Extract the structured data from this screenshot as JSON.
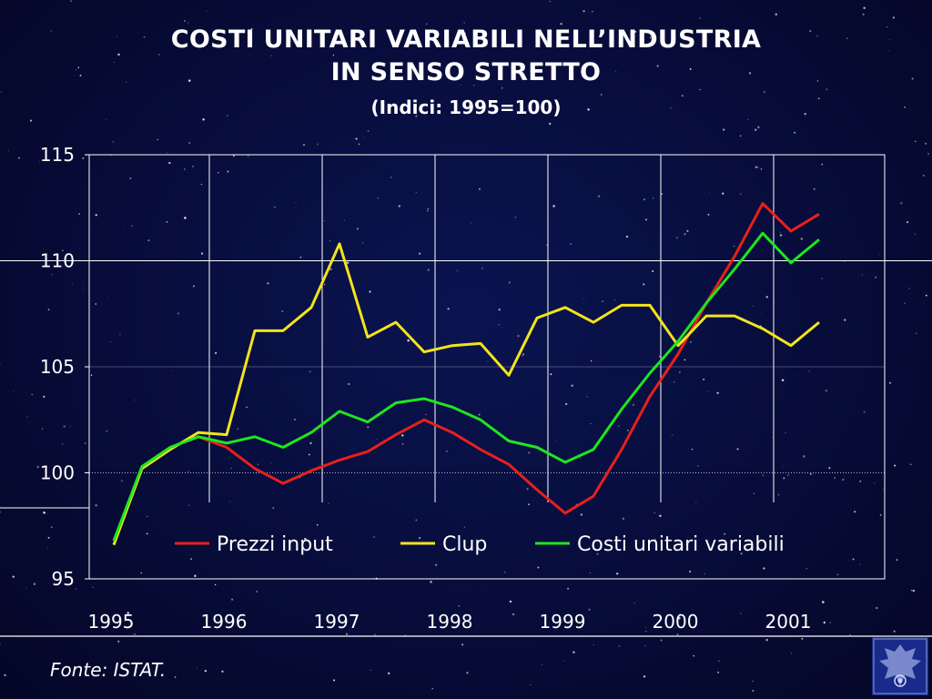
{
  "title_line1": "COSTI UNITARI VARIABILI NELL’INDUSTRIA",
  "title_line2": "IN SENSO STRETTO",
  "subtitle": "(Indici: 1995=100)",
  "source": "Fonte: ISTAT.",
  "logo_icon": "confindustria-eagle-logo-icon",
  "chart_data": {
    "type": "line",
    "title": "COSTI UNITARI VARIABILI NELL’INDUSTRIA IN SENSO STRETTO",
    "subtitle": "(Indici: 1995=100)",
    "x_start": 1995.0,
    "x_step": 0.25,
    "x_tick_labels": [
      "1995",
      "1996",
      "1997",
      "1998",
      "1999",
      "2000",
      "2001"
    ],
    "xlim": [
      1995.0,
      2002.0
    ],
    "ylim": [
      95,
      115
    ],
    "y_ticks": [
      95,
      100,
      105,
      110,
      115
    ],
    "grid": true,
    "legend_position": "bottom-inside",
    "series": [
      {
        "name": "Prezzi input",
        "color": "#e8201c",
        "values": [
          96.8,
          100.2,
          101.2,
          101.7,
          101.2,
          100.2,
          99.5,
          100.1,
          100.6,
          101.0,
          101.8,
          102.5,
          101.9,
          101.1,
          100.4,
          99.2,
          98.1,
          98.9,
          101.1,
          103.6,
          105.6,
          108.0,
          110.2,
          112.7,
          111.4,
          112.2
        ]
      },
      {
        "name": "Clup",
        "color": "#f2e41c",
        "values": [
          96.6,
          100.2,
          101.1,
          101.9,
          101.8,
          106.7,
          106.7,
          107.8,
          110.8,
          106.4,
          107.1,
          105.7,
          106.0,
          106.1,
          104.6,
          107.3,
          107.8,
          107.1,
          107.9,
          107.9,
          106.0,
          107.4,
          107.4,
          106.8,
          106.0,
          107.1
        ]
      },
      {
        "name": "Costi unitari variabili",
        "color": "#1ee61e",
        "values": [
          96.8,
          100.3,
          101.2,
          101.7,
          101.4,
          101.7,
          101.2,
          101.9,
          102.9,
          102.4,
          103.3,
          103.5,
          103.1,
          102.5,
          101.5,
          101.2,
          100.5,
          101.1,
          103.0,
          104.7,
          106.2,
          108.0,
          109.6,
          111.3,
          109.9,
          111.0
        ]
      }
    ]
  }
}
